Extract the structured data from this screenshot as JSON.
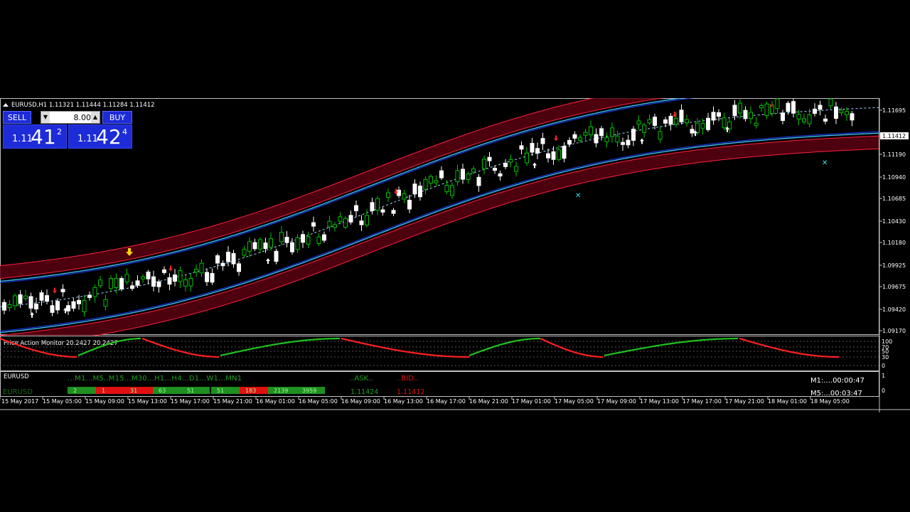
{
  "header": {
    "symbol_info": "EURUSD,H1  1.11321 1.11444 1.11284 1.11412"
  },
  "trade_panel": {
    "sell_label": "SELL",
    "buy_label": "BUY",
    "lot_value": "8.00",
    "sell_price": {
      "small": "1.11",
      "big": "41",
      "sup": "2"
    },
    "buy_price": {
      "small": "1.11",
      "big": "42",
      "sup": "4"
    }
  },
  "price_axis": {
    "labels": [
      "1.11695",
      "1.11412",
      "1.11190",
      "1.10940",
      "1.10685",
      "1.10430",
      "1.10180",
      "1.09925",
      "1.09675",
      "1.09420",
      "1.09170"
    ],
    "current_price": "1.11412"
  },
  "indicator": {
    "title": "Price Action Monitor 20.2427 20.2427",
    "levels": [
      "100",
      "70",
      "50",
      "30",
      "0"
    ]
  },
  "mtf_panel": {
    "title": "EURUSD",
    "symbol_row": "EURUSD",
    "headers": "...M1...M5..M15...M30...H1...H4...D1...W1...MN1",
    "ask_label": "..ASK..",
    "bid_label": "..BID..",
    "ask_value": "1.11424",
    "bid_value": "1.11412",
    "cells": [
      {
        "text": "2",
        "color": "#1f8f1f"
      },
      {
        "text": "1",
        "color": "#e01010"
      },
      {
        "text": "31",
        "color": "#e01010"
      },
      {
        "text": "63",
        "color": "#1f8f1f"
      },
      {
        "text": "51",
        "color": "#1f8f1f"
      },
      {
        "text": "51",
        "color": "#1f8f1f"
      },
      {
        "text": "183",
        "color": "#e01010"
      },
      {
        "text": "2139",
        "color": "#1f8f1f"
      },
      {
        "text": "3959",
        "color": "#1f8f1f"
      }
    ],
    "scale_top": "1",
    "scale_bottom": "0",
    "timer_m1": "M1:....00:00:47",
    "timer_m5": "M5:...00:03:47"
  },
  "time_axis": {
    "labels": [
      "15 May 2017",
      "15 May 05:00",
      "15 May 09:00",
      "15 May 13:00",
      "15 May 17:00",
      "15 May 21:00",
      "16 May 01:00",
      "16 May 05:00",
      "16 May 09:00",
      "16 May 13:00",
      "16 May 17:00",
      "16 May 21:00",
      "17 May 01:00",
      "17 May 05:00",
      "17 May 09:00",
      "17 May 13:00",
      "17 May 17:00",
      "17 May 21:00",
      "18 May 01:00",
      "18 May 05:00"
    ]
  },
  "colors": {
    "bull_candle": "#00c000",
    "bear_candle": "#ffffff",
    "band_outer": "#ff2040",
    "band_inner": "#40c8ff",
    "indicator_up": "#20c020",
    "indicator_down": "#ff2020",
    "panel_blue": "#1d2bd8"
  }
}
